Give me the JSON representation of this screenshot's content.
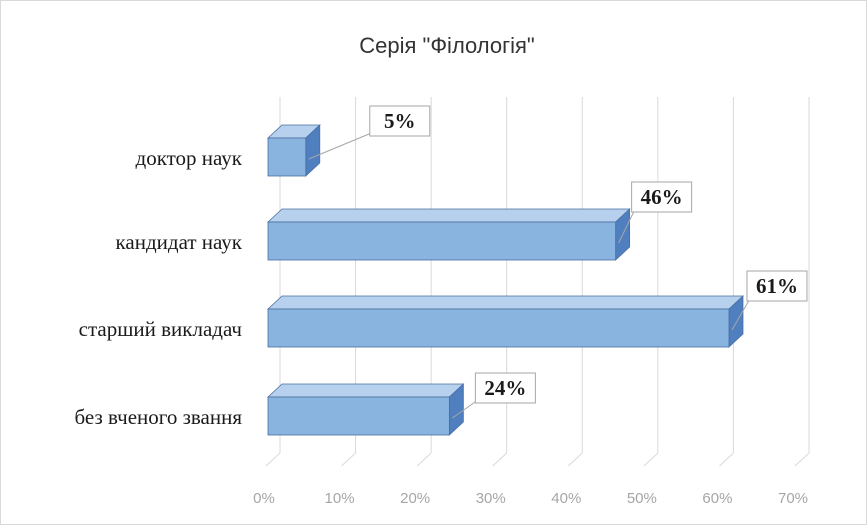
{
  "chart_data": {
    "type": "bar",
    "orientation": "horizontal",
    "title": "Серія \"Філологія\"",
    "categories": [
      "доктор наук",
      "кандидат наук",
      "старший викладач",
      "без вченого звання"
    ],
    "values": [
      5,
      46,
      61,
      24
    ],
    "data_labels": [
      "5%",
      "46%",
      "61%",
      "24%"
    ],
    "x_ticks": [
      "0%",
      "10%",
      "20%",
      "30%",
      "40%",
      "50%",
      "60%",
      "70%"
    ],
    "xlim": [
      0,
      70
    ],
    "grid": true,
    "style": "3d",
    "colors": {
      "bar_front": "#8ab4e0",
      "bar_top": "#b6d0ee",
      "bar_side": "#4f7fbf",
      "bar_edge": "#4a6fa0"
    }
  }
}
